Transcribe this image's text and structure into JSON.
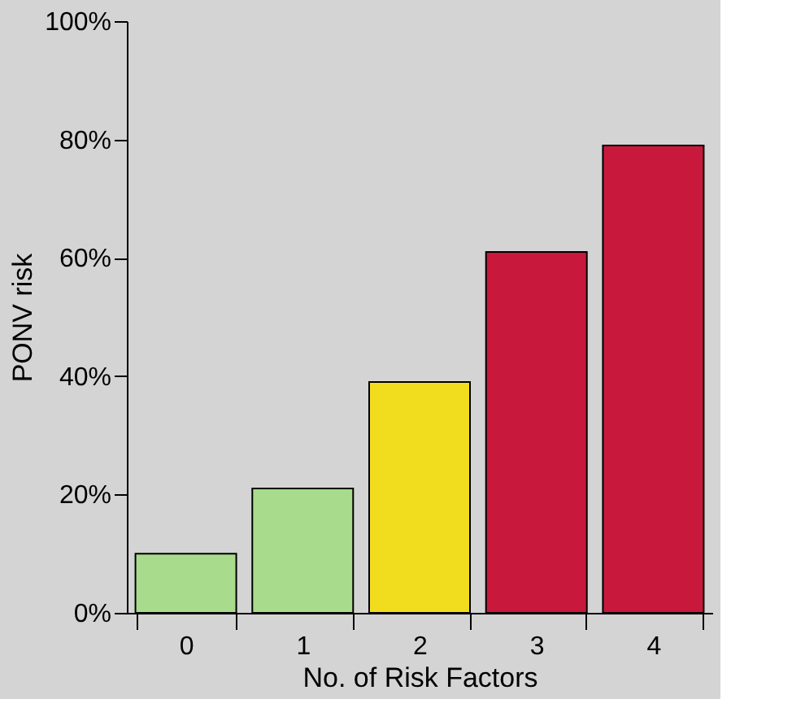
{
  "chart_data": {
    "type": "bar",
    "xlabel": "No. of Risk Factors",
    "ylabel": "PONV risk",
    "categories": [
      "0",
      "1",
      "2",
      "3",
      "4"
    ],
    "values": [
      10,
      21,
      39,
      61,
      79
    ],
    "colors": [
      "#a8dc8c",
      "#a8dc8c",
      "#f2dc1e",
      "#c8193c",
      "#c8193c"
    ],
    "ylim": [
      0,
      100
    ],
    "yticks": [
      {
        "value": 0,
        "label": "0%"
      },
      {
        "value": 20,
        "label": "20%"
      },
      {
        "value": 40,
        "label": "40%"
      },
      {
        "value": 60,
        "label": "60%"
      },
      {
        "value": 80,
        "label": "80%"
      },
      {
        "value": 100,
        "label": "100%"
      }
    ],
    "grid": false
  }
}
